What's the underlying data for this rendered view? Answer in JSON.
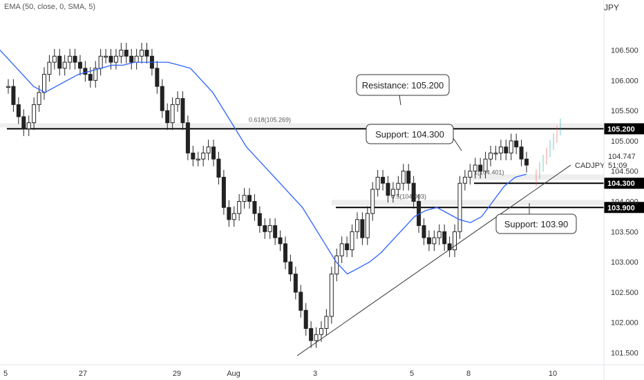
{
  "indicator": {
    "label": "EMA (50, close, 0, SMA, 5)"
  },
  "currency": {
    "label": "JPY"
  },
  "chart_data": {
    "type": "candlestick",
    "symbol": "CADJPY",
    "ylim": [
      101.3,
      107.1
    ],
    "y_ticks": [
      101.5,
      102.0,
      102.5,
      103.0,
      103.5,
      104.0,
      104.5,
      105.0,
      105.5,
      106.0,
      106.5
    ],
    "y_tick_labels": [
      "101.500",
      "102.000",
      "102.500",
      "103.000",
      "103.500",
      "104.000",
      "104.500",
      "105.000",
      "105.500",
      "106.000",
      "106.500"
    ],
    "x_tick_labels": [
      "5",
      "27",
      "29",
      "Aug",
      "3",
      "5",
      "8",
      "10"
    ],
    "candle_closes": [
      105.9,
      105.6,
      105.4,
      105.2,
      105.3,
      105.6,
      105.8,
      106.1,
      106.3,
      106.4,
      106.2,
      106.3,
      106.4,
      106.3,
      106.2,
      106.1,
      106.0,
      106.2,
      106.4,
      106.4,
      106.3,
      106.4,
      106.5,
      106.4,
      106.3,
      106.4,
      106.5,
      106.4,
      106.2,
      105.9,
      105.5,
      105.3,
      105.6,
      105.7,
      105.3,
      104.8,
      104.7,
      104.7,
      104.8,
      104.9,
      104.7,
      104.4,
      103.9,
      103.7,
      103.8,
      104.0,
      104.1,
      104.0,
      103.8,
      103.6,
      103.5,
      103.6,
      103.4,
      103.3,
      103.0,
      102.8,
      102.5,
      102.2,
      101.9,
      101.7,
      101.8,
      101.9,
      102.1,
      102.8,
      103.1,
      103.3,
      103.2,
      103.5,
      103.7,
      103.4,
      103.8,
      104.2,
      104.4,
      104.3,
      104.1,
      104.2,
      104.3,
      104.5,
      104.3,
      104.0,
      103.6,
      103.4,
      103.3,
      103.4,
      103.5,
      103.3,
      103.2,
      103.5,
      104.3,
      104.4,
      104.5,
      104.6,
      104.5,
      104.7,
      104.8,
      104.8,
      104.9,
      104.8,
      105.0,
      104.9,
      104.7,
      104.6
    ],
    "ema_values": [
      106.5,
      106.3,
      106.1,
      105.9,
      105.8,
      105.9,
      106.0,
      106.1,
      106.15,
      106.2,
      106.25,
      106.25,
      106.3,
      106.3,
      106.3,
      106.3,
      106.25,
      106.2,
      106.0,
      105.8,
      105.5,
      105.2,
      104.9,
      104.7,
      104.5,
      104.3,
      104.1,
      103.9,
      103.6,
      103.3,
      103.0,
      102.8,
      102.9,
      103.0,
      103.15,
      103.35,
      103.55,
      103.75,
      103.85,
      103.9,
      103.8,
      103.7,
      103.65,
      103.75,
      104.0,
      104.25,
      104.4,
      104.45
    ],
    "horizontal_levels": [
      {
        "value": 105.2,
        "label": "105.200"
      },
      {
        "value": 104.3,
        "label": "104.300"
      },
      {
        "value": 103.9,
        "label": "103.900"
      }
    ],
    "fib_levels": [
      {
        "label": "0.618(105.269)",
        "value": 105.269
      },
      {
        "label": "0.5(104.003)",
        "value": 104.003
      },
      {
        "label": "1(104.401)",
        "value": 104.401
      }
    ],
    "trendline": {
      "from": [
        101.45
      ],
      "to": [
        104.6
      ]
    },
    "current_price": {
      "value": "104.747",
      "countdown": "51:09"
    },
    "callouts": [
      "Resistance: 105.200",
      "Support: 104.300",
      "Support: 103.90"
    ],
    "symbol_label": "CADJPY"
  },
  "colors": {
    "candle": "#222222",
    "ema": "#2962ff",
    "level": "#000000",
    "projection_green": "#26a69a",
    "projection_red": "#ef5350"
  }
}
